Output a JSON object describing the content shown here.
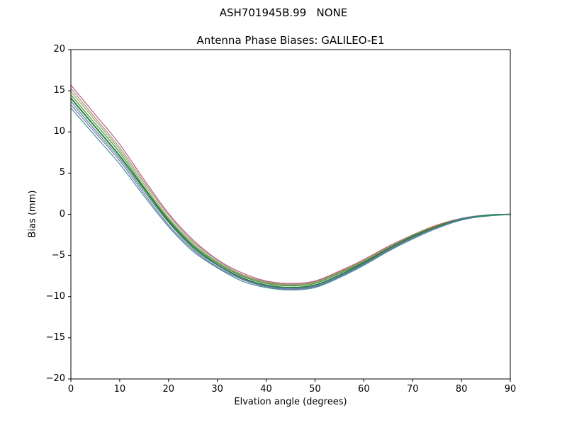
{
  "figure": {
    "suptitle": "ASH701945B.99   NONE"
  },
  "chart_data": {
    "type": "line",
    "title": "Antenna Phase Biases: GALILEO-E1",
    "xlabel": "Elvation angle (degrees)",
    "ylabel": "Bias (mm)",
    "xlim": [
      0,
      90
    ],
    "ylim": [
      -20,
      20
    ],
    "xticks": [
      0,
      10,
      20,
      30,
      40,
      50,
      60,
      70,
      80,
      90
    ],
    "yticks": [
      -20,
      -15,
      -10,
      -5,
      0,
      5,
      10,
      15,
      20
    ],
    "grid": false,
    "legend": "none",
    "x": [
      0,
      5,
      10,
      15,
      20,
      25,
      30,
      35,
      40,
      45,
      50,
      55,
      60,
      65,
      70,
      75,
      80,
      85,
      90
    ],
    "series": [
      {
        "name": "series-1",
        "color": "#c05070",
        "width": 1.2,
        "values": [
          15.7,
          12.1,
          8.5,
          4.2,
          0.1,
          -3.1,
          -5.5,
          -7.1,
          -8.1,
          -8.4,
          -8.1,
          -6.9,
          -5.5,
          -3.9,
          -2.5,
          -1.3,
          -0.5,
          -0.1,
          0.0
        ]
      },
      {
        "name": "series-2",
        "color": "#8c8c8c",
        "width": 1.2,
        "values": [
          15.3,
          11.7,
          8.1,
          3.9,
          -0.1,
          -3.3,
          -5.6,
          -7.3,
          -8.2,
          -8.5,
          -8.2,
          -7.0,
          -5.6,
          -4.0,
          -2.5,
          -1.4,
          -0.5,
          -0.1,
          0.0
        ]
      },
      {
        "name": "series-3",
        "color": "#9a9a30",
        "width": 1.2,
        "values": [
          14.9,
          11.4,
          7.8,
          3.6,
          -0.4,
          -3.5,
          -5.8,
          -7.4,
          -8.3,
          -8.6,
          -8.3,
          -7.1,
          -5.7,
          -4.1,
          -2.6,
          -1.4,
          -0.6,
          -0.1,
          0.0
        ]
      },
      {
        "name": "series-4",
        "color": "#2e8b57",
        "width": 1.2,
        "values": [
          14.5,
          11.0,
          7.5,
          3.3,
          -0.6,
          -3.7,
          -5.9,
          -7.5,
          -8.4,
          -8.7,
          -8.4,
          -7.2,
          -5.8,
          -4.2,
          -2.7,
          -1.5,
          -0.6,
          -0.1,
          0.0
        ]
      },
      {
        "name": "series-5",
        "color": "#1e7d1e",
        "width": 2.0,
        "values": [
          14.1,
          10.6,
          7.1,
          3.1,
          -0.8,
          -3.9,
          -6.1,
          -7.7,
          -8.6,
          -8.9,
          -8.6,
          -7.4,
          -5.9,
          -4.2,
          -2.7,
          -1.5,
          -0.6,
          -0.2,
          0.0
        ]
      },
      {
        "name": "series-6",
        "color": "#4878a8",
        "width": 1.2,
        "values": [
          13.7,
          10.2,
          6.8,
          2.8,
          -1.0,
          -4.1,
          -6.2,
          -7.8,
          -8.7,
          -9.0,
          -8.7,
          -7.5,
          -6.0,
          -4.3,
          -2.8,
          -1.6,
          -0.6,
          -0.2,
          0.0
        ]
      },
      {
        "name": "series-7",
        "color": "#8064a2",
        "width": 1.2,
        "values": [
          13.3,
          9.9,
          6.5,
          2.5,
          -1.3,
          -4.3,
          -6.4,
          -7.9,
          -8.8,
          -9.1,
          -8.8,
          -7.6,
          -6.1,
          -4.4,
          -2.9,
          -1.6,
          -0.7,
          -0.2,
          0.0
        ]
      },
      {
        "name": "series-8",
        "color": "#2f8f8f",
        "width": 1.2,
        "values": [
          12.9,
          9.5,
          6.1,
          2.2,
          -1.5,
          -4.5,
          -6.5,
          -8.1,
          -8.9,
          -9.2,
          -8.9,
          -7.7,
          -6.2,
          -4.5,
          -3.0,
          -1.7,
          -0.7,
          -0.2,
          0.0
        ]
      }
    ]
  }
}
